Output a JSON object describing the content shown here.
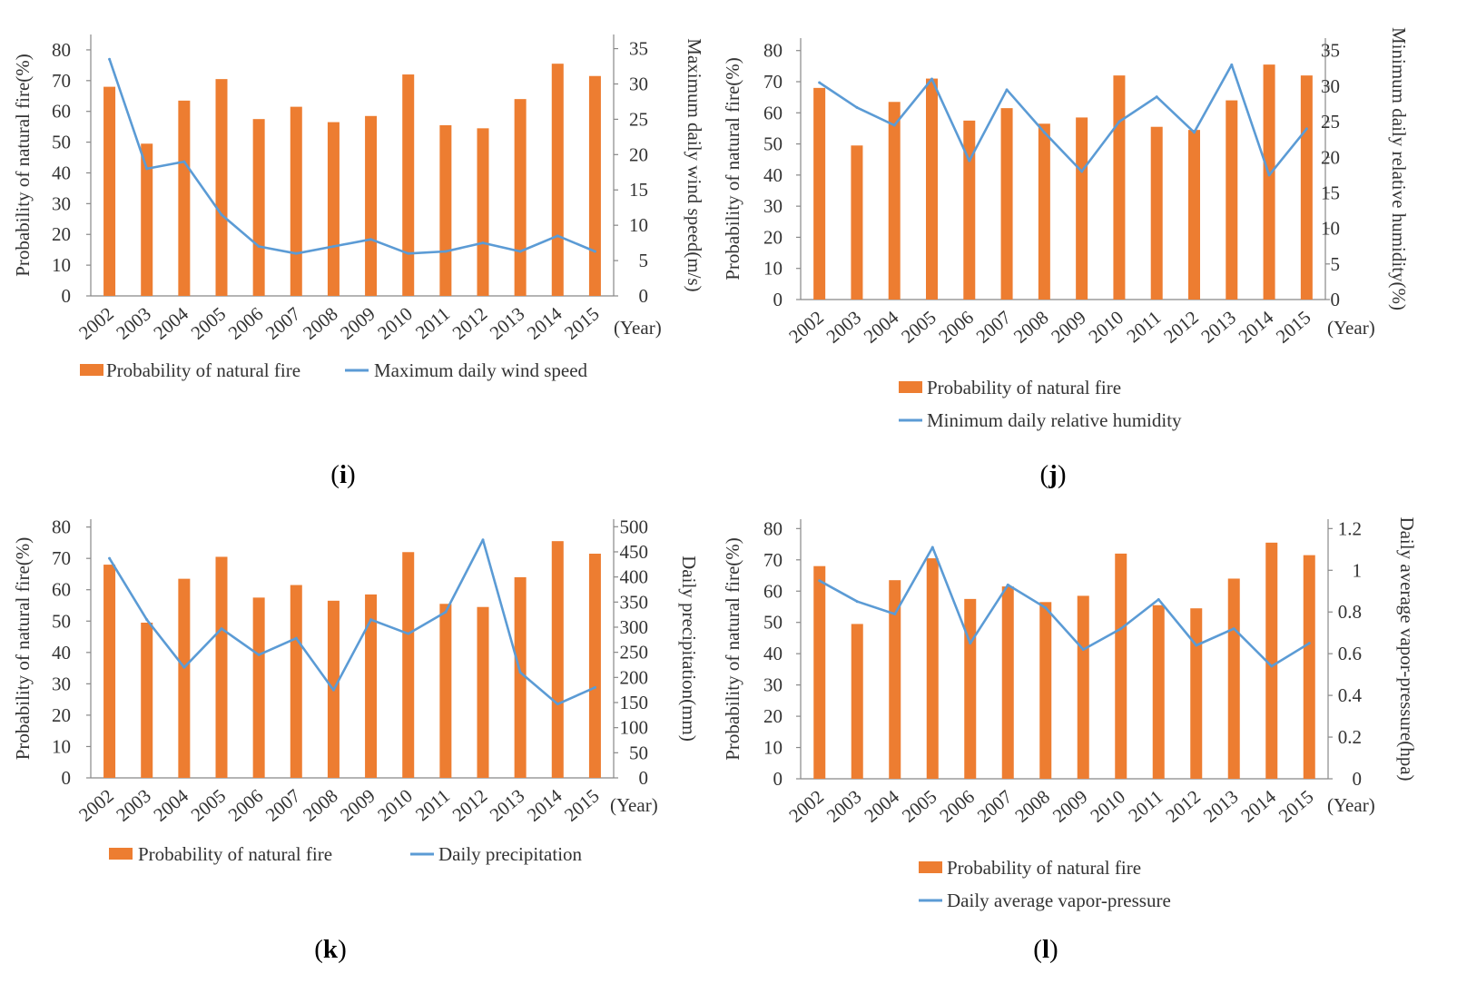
{
  "chart_data": [
    {
      "type": "bar",
      "panel_label": "i",
      "panel_letter": "i",
      "categories": [
        "2002",
        "2003",
        "2004",
        "2005",
        "2006",
        "2007",
        "2008",
        "2009",
        "2010",
        "2011",
        "2012",
        "2013",
        "2014",
        "2015"
      ],
      "x_unit_label": "(Year)",
      "y_left": {
        "label": "Probability of natural fire(%)",
        "ticks": [
          0,
          10,
          20,
          30,
          40,
          50,
          60,
          70,
          80
        ],
        "range": [
          0,
          85
        ]
      },
      "y_right": {
        "label": "Maximum daily wind speed(m/s)",
        "ticks": [
          0,
          5,
          10,
          15,
          20,
          25,
          30,
          35
        ],
        "range": [
          0,
          37
        ]
      },
      "series": [
        {
          "name": "Probability of natural fire",
          "kind": "bar",
          "axis": "left",
          "color": "#ED7D31",
          "values": [
            68,
            49.5,
            63.5,
            70.5,
            57.5,
            61.5,
            56.5,
            58.5,
            72,
            55.5,
            54.5,
            64,
            75.5,
            71.5
          ]
        },
        {
          "name": "Maximum daily wind speed",
          "kind": "line",
          "axis": "right",
          "color": "#5B9BD5",
          "values": [
            33.5,
            18,
            19,
            11.5,
            7,
            6,
            7,
            8,
            6,
            6.3,
            7.5,
            6.3,
            8.5,
            6.3
          ]
        }
      ],
      "legend": {
        "layout": "row"
      }
    },
    {
      "type": "bar",
      "panel_label": "j",
      "panel_letter": "j",
      "categories": [
        "2002",
        "2003",
        "2004",
        "2005",
        "2006",
        "2007",
        "2008",
        "2009",
        "2010",
        "2011",
        "2012",
        "2013",
        "2014",
        "2015"
      ],
      "x_unit_label": "(Year)",
      "y_left": {
        "label": "Probability of natural fire(%)",
        "ticks": [
          0,
          10,
          20,
          30,
          40,
          50,
          60,
          70,
          80
        ],
        "range": [
          0,
          84
        ]
      },
      "y_right": {
        "label": "Minimum daily relative humidity(%)",
        "ticks": [
          0,
          5,
          10,
          15,
          20,
          25,
          30,
          35
        ],
        "range": [
          0,
          36.75
        ]
      },
      "series": [
        {
          "name": "Probability of natural fire",
          "kind": "bar",
          "axis": "left",
          "color": "#ED7D31",
          "values": [
            68,
            49.5,
            63.5,
            71,
            57.5,
            61.5,
            56.5,
            58.5,
            72,
            55.5,
            54.5,
            64,
            75.5,
            72
          ]
        },
        {
          "name": "Minimum daily relative humidity",
          "kind": "line",
          "axis": "right",
          "color": "#5B9BD5",
          "values": [
            30.5,
            27,
            24.5,
            31,
            19.5,
            29.5,
            23.5,
            18,
            25,
            28.5,
            23.5,
            33,
            17.5,
            24
          ]
        }
      ],
      "legend": {
        "layout": "column"
      }
    },
    {
      "type": "bar",
      "panel_label": "k",
      "panel_letter": "k",
      "categories": [
        "2002",
        "2003",
        "2004",
        "2005",
        "2006",
        "2007",
        "2008",
        "2009",
        "2010",
        "2011",
        "2012",
        "2013",
        "2014",
        "2015"
      ],
      "x_unit_label": "(Year)",
      "y_left": {
        "label": "Probability of natural fire(%)",
        "ticks": [
          0,
          10,
          20,
          30,
          40,
          50,
          60,
          70,
          80
        ],
        "range": [
          0,
          82.5
        ]
      },
      "y_right": {
        "label": "Daily precipitation(mm)",
        "ticks": [
          0,
          50,
          100,
          150,
          200,
          250,
          300,
          350,
          400,
          450,
          500
        ],
        "range": [
          0,
          515
        ]
      },
      "series": [
        {
          "name": "Probability of natural fire",
          "kind": "bar",
          "axis": "left",
          "color": "#ED7D31",
          "values": [
            68,
            49.5,
            63.5,
            70.5,
            57.5,
            61.5,
            56.5,
            58.5,
            72,
            55.5,
            54.5,
            64,
            75.5,
            71.5
          ]
        },
        {
          "name": "Daily precipitation",
          "kind": "line",
          "axis": "right",
          "color": "#5B9BD5",
          "values": [
            437,
            315,
            220,
            297,
            245,
            278,
            175,
            315,
            287,
            330,
            474,
            210,
            147,
            180
          ]
        }
      ],
      "legend": {
        "layout": "row"
      }
    },
    {
      "type": "bar",
      "panel_label": "l",
      "panel_letter": "l",
      "categories": [
        "2002",
        "2003",
        "2004",
        "2005",
        "2006",
        "2007",
        "2008",
        "2009",
        "2010",
        "2011",
        "2012",
        "2013",
        "2014",
        "2015"
      ],
      "x_unit_label": "(Year)",
      "y_left": {
        "label": "Probability of natural fire(%)",
        "ticks": [
          0,
          10,
          20,
          30,
          40,
          50,
          60,
          70,
          80
        ],
        "range": [
          0,
          83
        ]
      },
      "y_right": {
        "label": "Daily average vapor-pressure(hpa)",
        "tick_labels": [
          "0",
          "0.2",
          "0.4",
          "0.6",
          "0.8",
          "1",
          "1.2"
        ],
        "ticks": [
          0,
          0.2,
          0.4,
          0.6,
          0.8,
          1,
          1.2
        ],
        "range": [
          0,
          1.245
        ]
      },
      "series": [
        {
          "name": "Probability of natural fire",
          "kind": "bar",
          "axis": "left",
          "color": "#ED7D31",
          "values": [
            68,
            49.5,
            63.5,
            70.5,
            57.5,
            61.5,
            56.5,
            58.5,
            72,
            55.5,
            54.5,
            64,
            75.5,
            71.5
          ]
        },
        {
          "name": "Daily average vapor-pressure",
          "kind": "line",
          "axis": "right",
          "color": "#5B9BD5",
          "values": [
            0.95,
            0.85,
            0.79,
            1.11,
            0.65,
            0.93,
            0.82,
            0.62,
            0.72,
            0.86,
            0.64,
            0.72,
            0.54,
            0.65
          ]
        }
      ],
      "legend": {
        "layout": "column"
      }
    }
  ]
}
